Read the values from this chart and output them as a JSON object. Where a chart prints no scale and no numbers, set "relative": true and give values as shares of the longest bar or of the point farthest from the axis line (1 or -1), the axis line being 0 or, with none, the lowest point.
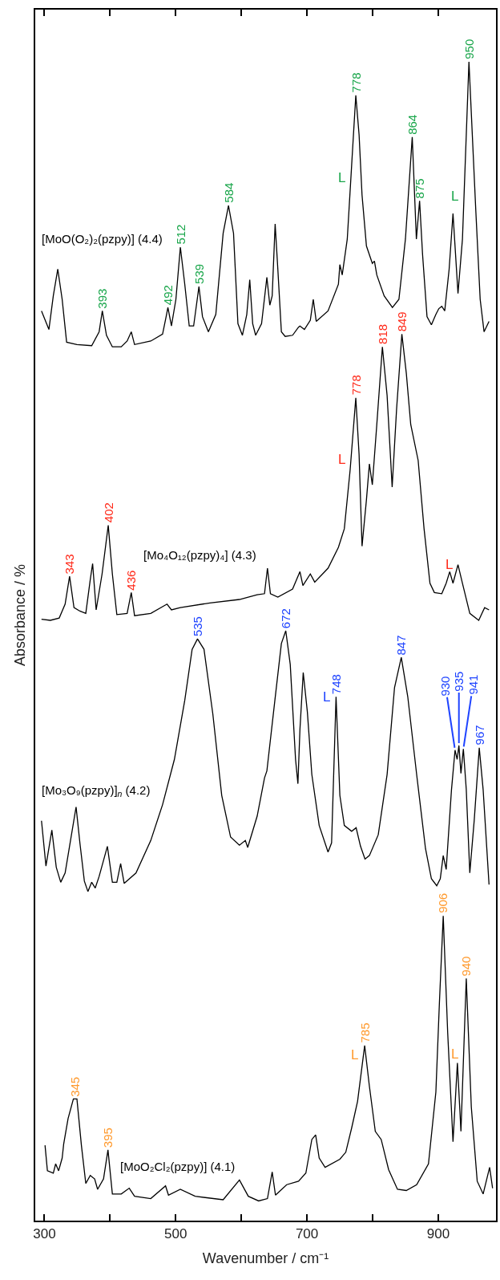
{
  "chart_data": {
    "type": "line",
    "relative": true,
    "xlabel": "Wavenumber / cm⁻¹",
    "ylabel": "Absorbance / %",
    "xlim": [
      286,
      988
    ],
    "xticks": [
      300,
      {
        "value": 400,
        "label": null
      },
      500,
      {
        "value": 600,
        "label": null
      },
      700,
      {
        "value": 800,
        "label": null
      },
      900
    ],
    "legend": false,
    "line_style": "solid",
    "series": [
      {
        "name": "[MoO(O₂)₂(pzpy)] (4.4)",
        "color": "#000000",
        "x": [
          295.5,
          306.8,
          313.5,
          320.3,
          327.0,
          333.8,
          349.5,
          372.0,
          383.3,
          388.2,
          394.5,
          403.5,
          417.0,
          426.0,
          432.3,
          437.3,
          462.0,
          480.0,
          485.4,
          488.1,
          493.5,
          500.3,
          507.1,
          513.8,
          520.6,
          527.3,
          535.4,
          540.8,
          549.8,
          561.1,
          572.3,
          580.4,
          588.1,
          594.8,
          601.6,
          608.3,
          612.8,
          617.3,
          621.8,
          630.8,
          638.9,
          643.4,
          647.0,
          651.5,
          655.6,
          661.0,
          666.8,
          678.1,
          687.1,
          689.3,
          696.1,
          705.1,
          709.6,
          714.1,
          732.1,
          747.9,
          750.1,
          753.7,
          761.4,
          768.1,
          774.4,
          779.4,
          783.9,
          790.6,
          799.6,
          802.8,
          806.4,
          817.6,
          830.2,
          840.1,
          850.0,
          860.4,
          866.7,
          871.6,
          876.1,
          882.9,
          889.6,
          896.4,
          900.9,
          905.4,
          909.9,
          916.6,
          922.5,
          930.1,
          936.9,
          946.8,
          957.2,
          963.9,
          969.8,
          977.4
        ],
        "values": [
          0.785,
          0.769,
          0.798,
          0.821,
          0.795,
          0.758,
          0.756,
          0.755,
          0.767,
          0.785,
          0.764,
          0.754,
          0.754,
          0.759,
          0.767,
          0.756,
          0.759,
          0.765,
          0.78,
          0.788,
          0.772,
          0.795,
          0.84,
          0.808,
          0.772,
          0.772,
          0.806,
          0.78,
          0.767,
          0.782,
          0.852,
          0.876,
          0.852,
          0.774,
          0.764,
          0.782,
          0.812,
          0.774,
          0.764,
          0.774,
          0.814,
          0.79,
          0.798,
          0.86,
          0.821,
          0.767,
          0.763,
          0.764,
          0.771,
          0.772,
          0.769,
          0.777,
          0.795,
          0.776,
          0.785,
          0.808,
          0.825,
          0.816,
          0.847,
          0.911,
          0.971,
          0.937,
          0.885,
          0.841,
          0.826,
          0.828,
          0.816,
          0.798,
          0.788,
          0.795,
          0.847,
          0.935,
          0.847,
          0.88,
          0.834,
          0.78,
          0.773,
          0.782,
          0.787,
          0.789,
          0.785,
          0.821,
          0.869,
          0.8,
          0.847,
          1.0,
          0.872,
          0.795,
          0.767,
          0.776
        ]
      },
      {
        "name": "[Mo₄O₁₂(pzpy)₄] (4.3)",
        "color": "#000000",
        "x": [
          295.5,
          309.0,
          322.5,
          331.5,
          338.3,
          345.0,
          354.0,
          363.0,
          369.8,
          373.4,
          378.8,
          387.8,
          397.2,
          403.5,
          410.3,
          426.0,
          432.3,
          437.3,
          462.0,
          486.8,
          493.5,
          507.0,
          552.0,
          597.0,
          624.0,
          635.3,
          639.8,
          644.3,
          655.6,
          678.1,
          689.3,
          693.8,
          705.1,
          711.8,
          732.1,
          747.9,
          756.9,
          765.8,
          774.4,
          779.4,
          783.9,
          790.6,
          795.1,
          799.6,
          806.4,
          814.9,
          822.1,
          829.8,
          836.5,
          844.6,
          851.4,
          858.1,
          869.4,
          878.4,
          887.4,
          894.1,
          905.4,
          912.1,
          917.5,
          922.5,
          930.1,
          936.9,
          948.1,
          961.7,
          970.7,
          977.4
        ],
        "values": [
          0.519,
          0.518,
          0.52,
          0.532,
          0.556,
          0.529,
          0.526,
          0.524,
          0.553,
          0.567,
          0.527,
          0.558,
          0.6,
          0.558,
          0.523,
          0.524,
          0.542,
          0.522,
          0.524,
          0.532,
          0.527,
          0.529,
          0.533,
          0.536,
          0.54,
          0.541,
          0.563,
          0.541,
          0.538,
          0.545,
          0.56,
          0.548,
          0.558,
          0.551,
          0.563,
          0.581,
          0.597,
          0.648,
          0.71,
          0.661,
          0.582,
          0.622,
          0.653,
          0.635,
          0.687,
          0.754,
          0.712,
          0.633,
          0.7,
          0.765,
          0.731,
          0.687,
          0.656,
          0.597,
          0.55,
          0.542,
          0.541,
          0.55,
          0.56,
          0.55,
          0.566,
          0.55,
          0.524,
          0.518,
          0.529,
          0.527
        ]
      },
      {
        "name": "[Mo₃O₉(pzpy)]$_{n}$ (4.2)",
        "color": "#000000",
        "x": [
          295.5,
          302.3,
          311.3,
          318.0,
          324.8,
          331.5,
          348.2,
          354.0,
          360.8,
          366.2,
          372.0,
          377.4,
          383.3,
          395.9,
          403.5,
          410.3,
          416.1,
          421.5,
          439.5,
          462.0,
          480.0,
          498.0,
          513.8,
          525.0,
          533.2,
          543.1,
          556.6,
          570.1,
          583.6,
          597.1,
          606.1,
          609.7,
          624.1,
          635.3,
          638.9,
          651.1,
          661.0,
          667.7,
          674.5,
          682.6,
          686.2,
          689.3,
          694.3,
          700.6,
          707.4,
          718.6,
          732.1,
          737.5,
          744.3,
          750.1,
          756.9,
          768.1,
          774.9,
          781.6,
          788.4,
          795.1,
          808.6,
          822.1,
          833.4,
          843.7,
          853.6,
          867.1,
          880.6,
          889.6,
          897.7,
          903.1,
          907.6,
          912.1,
          920.2,
          925.6,
          928.8,
          931.5,
          934.6,
          938.3,
          942.7,
          948.1,
          954.9,
          962.5,
          968.4,
          977.4
        ],
        "values": [
          0.345,
          0.306,
          0.337,
          0.305,
          0.292,
          0.3,
          0.357,
          0.326,
          0.293,
          0.284,
          0.292,
          0.287,
          0.297,
          0.323,
          0.292,
          0.292,
          0.308,
          0.291,
          0.3,
          0.328,
          0.359,
          0.398,
          0.449,
          0.493,
          0.502,
          0.493,
          0.437,
          0.367,
          0.331,
          0.324,
          0.328,
          0.322,
          0.349,
          0.382,
          0.388,
          0.449,
          0.498,
          0.509,
          0.48,
          0.398,
          0.377,
          0.424,
          0.473,
          0.439,
          0.385,
          0.341,
          0.318,
          0.326,
          0.452,
          0.367,
          0.341,
          0.336,
          0.339,
          0.323,
          0.312,
          0.315,
          0.333,
          0.385,
          0.46,
          0.486,
          0.452,
          0.385,
          0.321,
          0.295,
          0.289,
          0.295,
          0.315,
          0.303,
          0.372,
          0.406,
          0.398,
          0.41,
          0.386,
          0.407,
          0.372,
          0.3,
          0.346,
          0.408,
          0.372,
          0.29
        ]
      },
      {
        "name": "[MoO₂Cl₂(pzpy)] (4.1)",
        "color": "#000000",
        "x": [
          300.9,
          304.5,
          313.5,
          317.1,
          321.6,
          327.0,
          329.3,
          336.0,
          344.1,
          349.5,
          356.3,
          363.0,
          369.8,
          376.5,
          381.0,
          390.0,
          396.8,
          403.5,
          417.0,
          429.2,
          437.3,
          462.0,
          484.5,
          489.0,
          507.0,
          529.6,
          572.3,
          597.1,
          610.6,
          626.3,
          639.8,
          647.0,
          652.0,
          669.1,
          687.1,
          698.3,
          707.4,
          713.2,
          718.6,
          727.6,
          750.1,
          759.1,
          768.1,
          777.1,
          787.9,
          795.1,
          804.1,
          813.1,
          824.4,
          837.9,
          851.4,
          867.1,
          885.1,
          896.4,
          901.8,
          907.6,
          914.4,
          922.5,
          929.2,
          934.6,
          942.7,
          950.4,
          959.4,
          968.4,
          978.3,
          982.8
        ],
        "values": [
          0.065,
          0.043,
          0.041,
          0.049,
          0.043,
          0.054,
          0.066,
          0.088,
          0.105,
          0.105,
          0.065,
          0.032,
          0.039,
          0.036,
          0.027,
          0.036,
          0.061,
          0.023,
          0.023,
          0.028,
          0.021,
          0.019,
          0.03,
          0.022,
          0.027,
          0.021,
          0.018,
          0.035,
          0.021,
          0.017,
          0.019,
          0.042,
          0.022,
          0.031,
          0.034,
          0.041,
          0.07,
          0.074,
          0.054,
          0.046,
          0.053,
          0.059,
          0.08,
          0.103,
          0.151,
          0.116,
          0.077,
          0.07,
          0.044,
          0.027,
          0.026,
          0.031,
          0.049,
          0.111,
          0.188,
          0.263,
          0.162,
          0.068,
          0.136,
          0.077,
          0.209,
          0.098,
          0.034,
          0.023,
          0.046,
          0.028
        ]
      }
    ],
    "annotations": [
      {
        "text": "393",
        "x": 388.2,
        "y": 0.785
      },
      {
        "text": "492",
        "x": 488.1,
        "y": 0.788
      },
      {
        "text": "512",
        "x": 507.1,
        "y": 0.84
      },
      {
        "text": "539",
        "x": 535.4,
        "y": 0.806
      },
      {
        "text": "584",
        "x": 580.4,
        "y": 0.876
      },
      {
        "text": "778",
        "x": 774.4,
        "y": 0.971
      },
      {
        "text": "864",
        "x": 860.4,
        "y": 0.935
      },
      {
        "text": "875",
        "x": 871.6,
        "y": 0.88
      },
      {
        "text": "950",
        "x": 946.8,
        "y": 1.0
      },
      {
        "text": "L",
        "x": 767.6,
        "y": 0.9
      },
      {
        "text": "L",
        "x": 939.3,
        "y": 0.884
      },
      {
        "text": "343",
        "x": 338.3,
        "y": 0.556
      },
      {
        "text": "402",
        "x": 397.2,
        "y": 0.6
      },
      {
        "text": "436",
        "x": 432.3,
        "y": 0.542
      },
      {
        "text": "778",
        "x": 774.4,
        "y": 0.71
      },
      {
        "text": "818",
        "x": 814.9,
        "y": 0.754
      },
      {
        "text": "849",
        "x": 844.6,
        "y": 0.765
      },
      {
        "text": "L",
        "x": 767.0,
        "y": 0.657
      },
      {
        "text": "L",
        "x": 930.1,
        "y": 0.566
      },
      {
        "text": "535",
        "x": 533.2,
        "y": 0.502
      },
      {
        "text": "672",
        "x": 667.7,
        "y": 0.509
      },
      {
        "text": "748",
        "x": 744.3,
        "y": 0.452
      },
      {
        "text": "847",
        "x": 843.7,
        "y": 0.486
      },
      {
        "text": "930",
        "x": 925.6,
        "y": 0.406
      },
      {
        "text": "935",
        "x": 931.5,
        "y": 0.41
      },
      {
        "text": "941",
        "x": 938.3,
        "y": 0.407
      },
      {
        "text": "967",
        "x": 962.5,
        "y": 0.408
      },
      {
        "text": "L",
        "x": 744.3,
        "y": 0.452
      },
      {
        "text": "345",
        "x": 347.0,
        "y": 0.105
      },
      {
        "text": "395",
        "x": 396.8,
        "y": 0.061
      },
      {
        "text": "785",
        "x": 787.9,
        "y": 0.151
      },
      {
        "text": "906",
        "x": 907.6,
        "y": 0.263
      },
      {
        "text": "940",
        "x": 942.7,
        "y": 0.209
      },
      {
        "text": "L",
        "x": 786.1,
        "y": 0.143
      },
      {
        "text": "L",
        "x": 938.7,
        "y": 0.144
      }
    ]
  }
}
